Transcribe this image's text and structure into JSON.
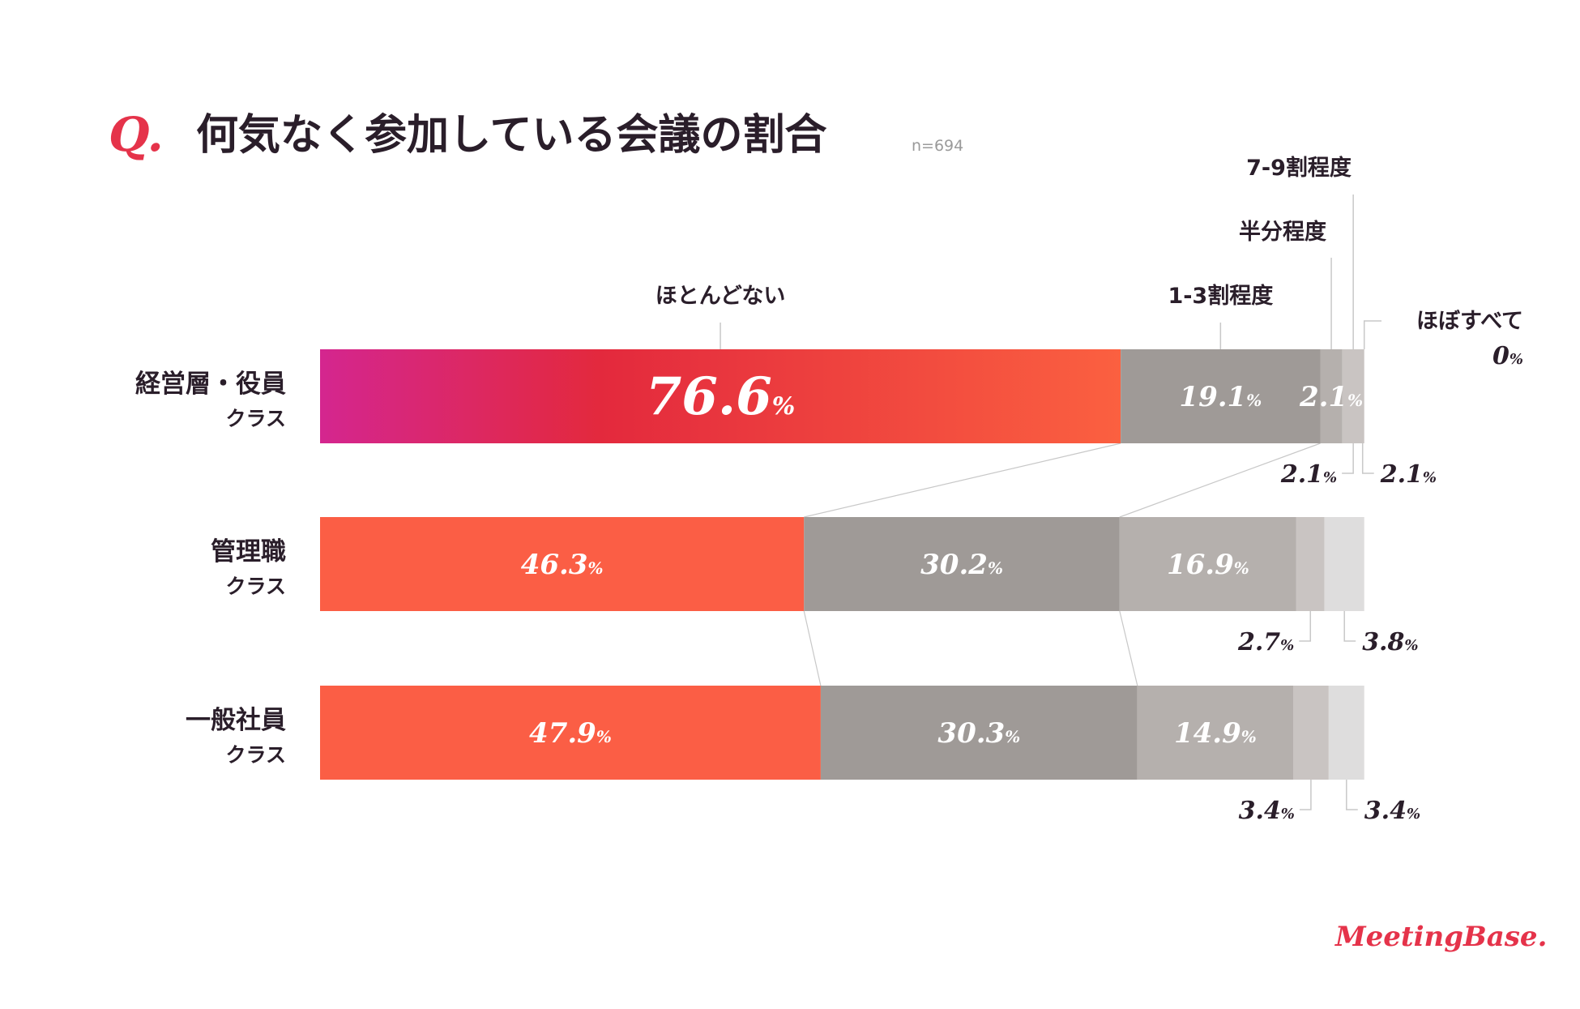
{
  "title": {
    "q_mark": "Q.",
    "text": "何気なく参加している会議の割合",
    "sample": "n=694"
  },
  "brand": {
    "name": "MeetingBase",
    "dot": "."
  },
  "colors": {
    "accent": "#e5334a",
    "gradient_start": "#d4268f",
    "gradient_mid": "#e3293d",
    "gradient_end": "#fb6040",
    "hotondo": "#fb5e45",
    "s13": "#9f9a97",
    "s_half": "#b5b0ad",
    "s79": "#c9c4c2",
    "s_all": "#dedddd",
    "text": "#2a1e2a",
    "connector": "#c8c8c8"
  },
  "chart_data": {
    "type": "stacked_bar_horizontal",
    "title": "何気なく参加している会議の割合",
    "percent_sign": "%",
    "series": [
      {
        "name": "ほとんどない",
        "values": [
          76.6,
          46.3,
          47.9
        ]
      },
      {
        "name": "1-3割程度",
        "values": [
          19.1,
          30.2,
          30.3
        ]
      },
      {
        "name": "半分程度",
        "values": [
          2.1,
          16.9,
          14.9
        ]
      },
      {
        "name": "7-9割程度",
        "values": [
          2.1,
          2.7,
          3.4
        ]
      },
      {
        "name": "ほぼすべて",
        "values": [
          0,
          3.8,
          3.4
        ]
      }
    ],
    "categories": [
      {
        "line1": "経営層・役員",
        "line2": "クラス"
      },
      {
        "line1": "管理職",
        "line2": "クラス"
      },
      {
        "line1": "一般社員",
        "line2": "クラス"
      }
    ],
    "xlim": [
      0,
      100
    ],
    "external_labels": [
      {
        "left": "2.1",
        "right": "2.1"
      },
      {
        "left": "2.7",
        "right": "3.8"
      },
      {
        "left": "3.4",
        "right": "3.4"
      }
    ],
    "top_zero_label": "0"
  }
}
